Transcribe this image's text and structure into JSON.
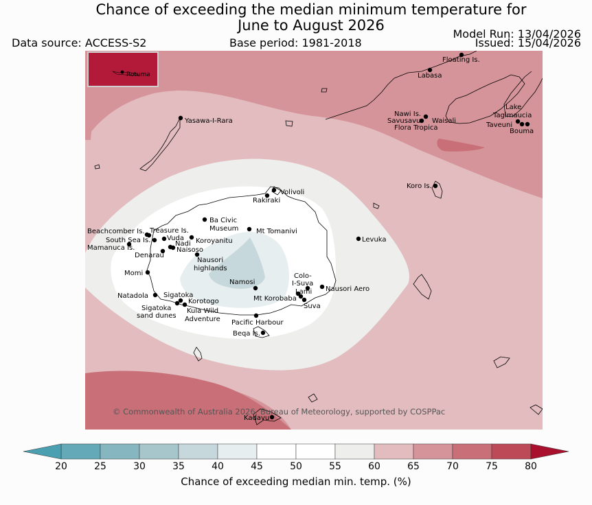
{
  "title_line1": "Chance of exceeding the median minimum temperature for",
  "title_line2": "June to August 2026",
  "data_source": "Data source: ACCESS-S2",
  "base_period": "Base period: 1981-2018",
  "model_run": "Model Run: 13/04/2026",
  "issued": "Issued: 15/04/2026",
  "copyright": "© Commonwealth of Australia 2026, Bureau of Meteorology, supported by COSPPac",
  "inset_label": "Rotuma",
  "colorbar": {
    "ticks": [
      "20",
      "25",
      "30",
      "35",
      "40",
      "45",
      "50",
      "55",
      "60",
      "65",
      "70",
      "75",
      "80"
    ],
    "colors": [
      "#63a9b8",
      "#86b6c0",
      "#a7c6cb",
      "#c7d8dc",
      "#e6eef0",
      "#ffffff",
      "#ffffff",
      "#eeeeed",
      "#e2bcbf",
      "#d5949a",
      "#c86f77",
      "#bd4a57",
      "#b31a3a"
    ],
    "label": "Chance of exceeding median min. temp. (%)"
  },
  "places": [
    {
      "name": "Floating Is."
    },
    {
      "name": "Labasa"
    },
    {
      "name": "Yasawa-I-Rara"
    },
    {
      "name": "Nawi Is."
    },
    {
      "name": "Savusavu"
    },
    {
      "name": "Waisali"
    },
    {
      "name": "Flora Tropica"
    },
    {
      "name": "Lake"
    },
    {
      "name": "Tagimaucia"
    },
    {
      "name": "Taveuni"
    },
    {
      "name": "Bouma"
    },
    {
      "name": "Koro Is."
    },
    {
      "name": "Volivoli"
    },
    {
      "name": "Rakiraki"
    },
    {
      "name": "Ba Civic"
    },
    {
      "name": "Museum"
    },
    {
      "name": "Mt Tomanivi"
    },
    {
      "name": "Beachcomber Is."
    },
    {
      "name": "Treasure Is."
    },
    {
      "name": "South Sea Is."
    },
    {
      "name": "Vuda"
    },
    {
      "name": "Koroyanitu"
    },
    {
      "name": "Nadi"
    },
    {
      "name": "Mamanuca Is."
    },
    {
      "name": "Naisoso"
    },
    {
      "name": "Denarau"
    },
    {
      "name": "Nausori"
    },
    {
      "name": "highlands"
    },
    {
      "name": "Levuka"
    },
    {
      "name": "Momi"
    },
    {
      "name": "Colo-"
    },
    {
      "name": "I-Suva"
    },
    {
      "name": "Namosi"
    },
    {
      "name": "Nausori Aero"
    },
    {
      "name": "Lami"
    },
    {
      "name": "Mt Korobaba"
    },
    {
      "name": "Natadola"
    },
    {
      "name": "Sigatoka"
    },
    {
      "name": "Suva"
    },
    {
      "name": "Korotogo"
    },
    {
      "name": "Sigatoka"
    },
    {
      "name": "sand dunes"
    },
    {
      "name": "Kula Wild"
    },
    {
      "name": "Adventure"
    },
    {
      "name": "Pacific Harbour"
    },
    {
      "name": "Beqa Is."
    },
    {
      "name": "Kadavu"
    }
  ]
}
